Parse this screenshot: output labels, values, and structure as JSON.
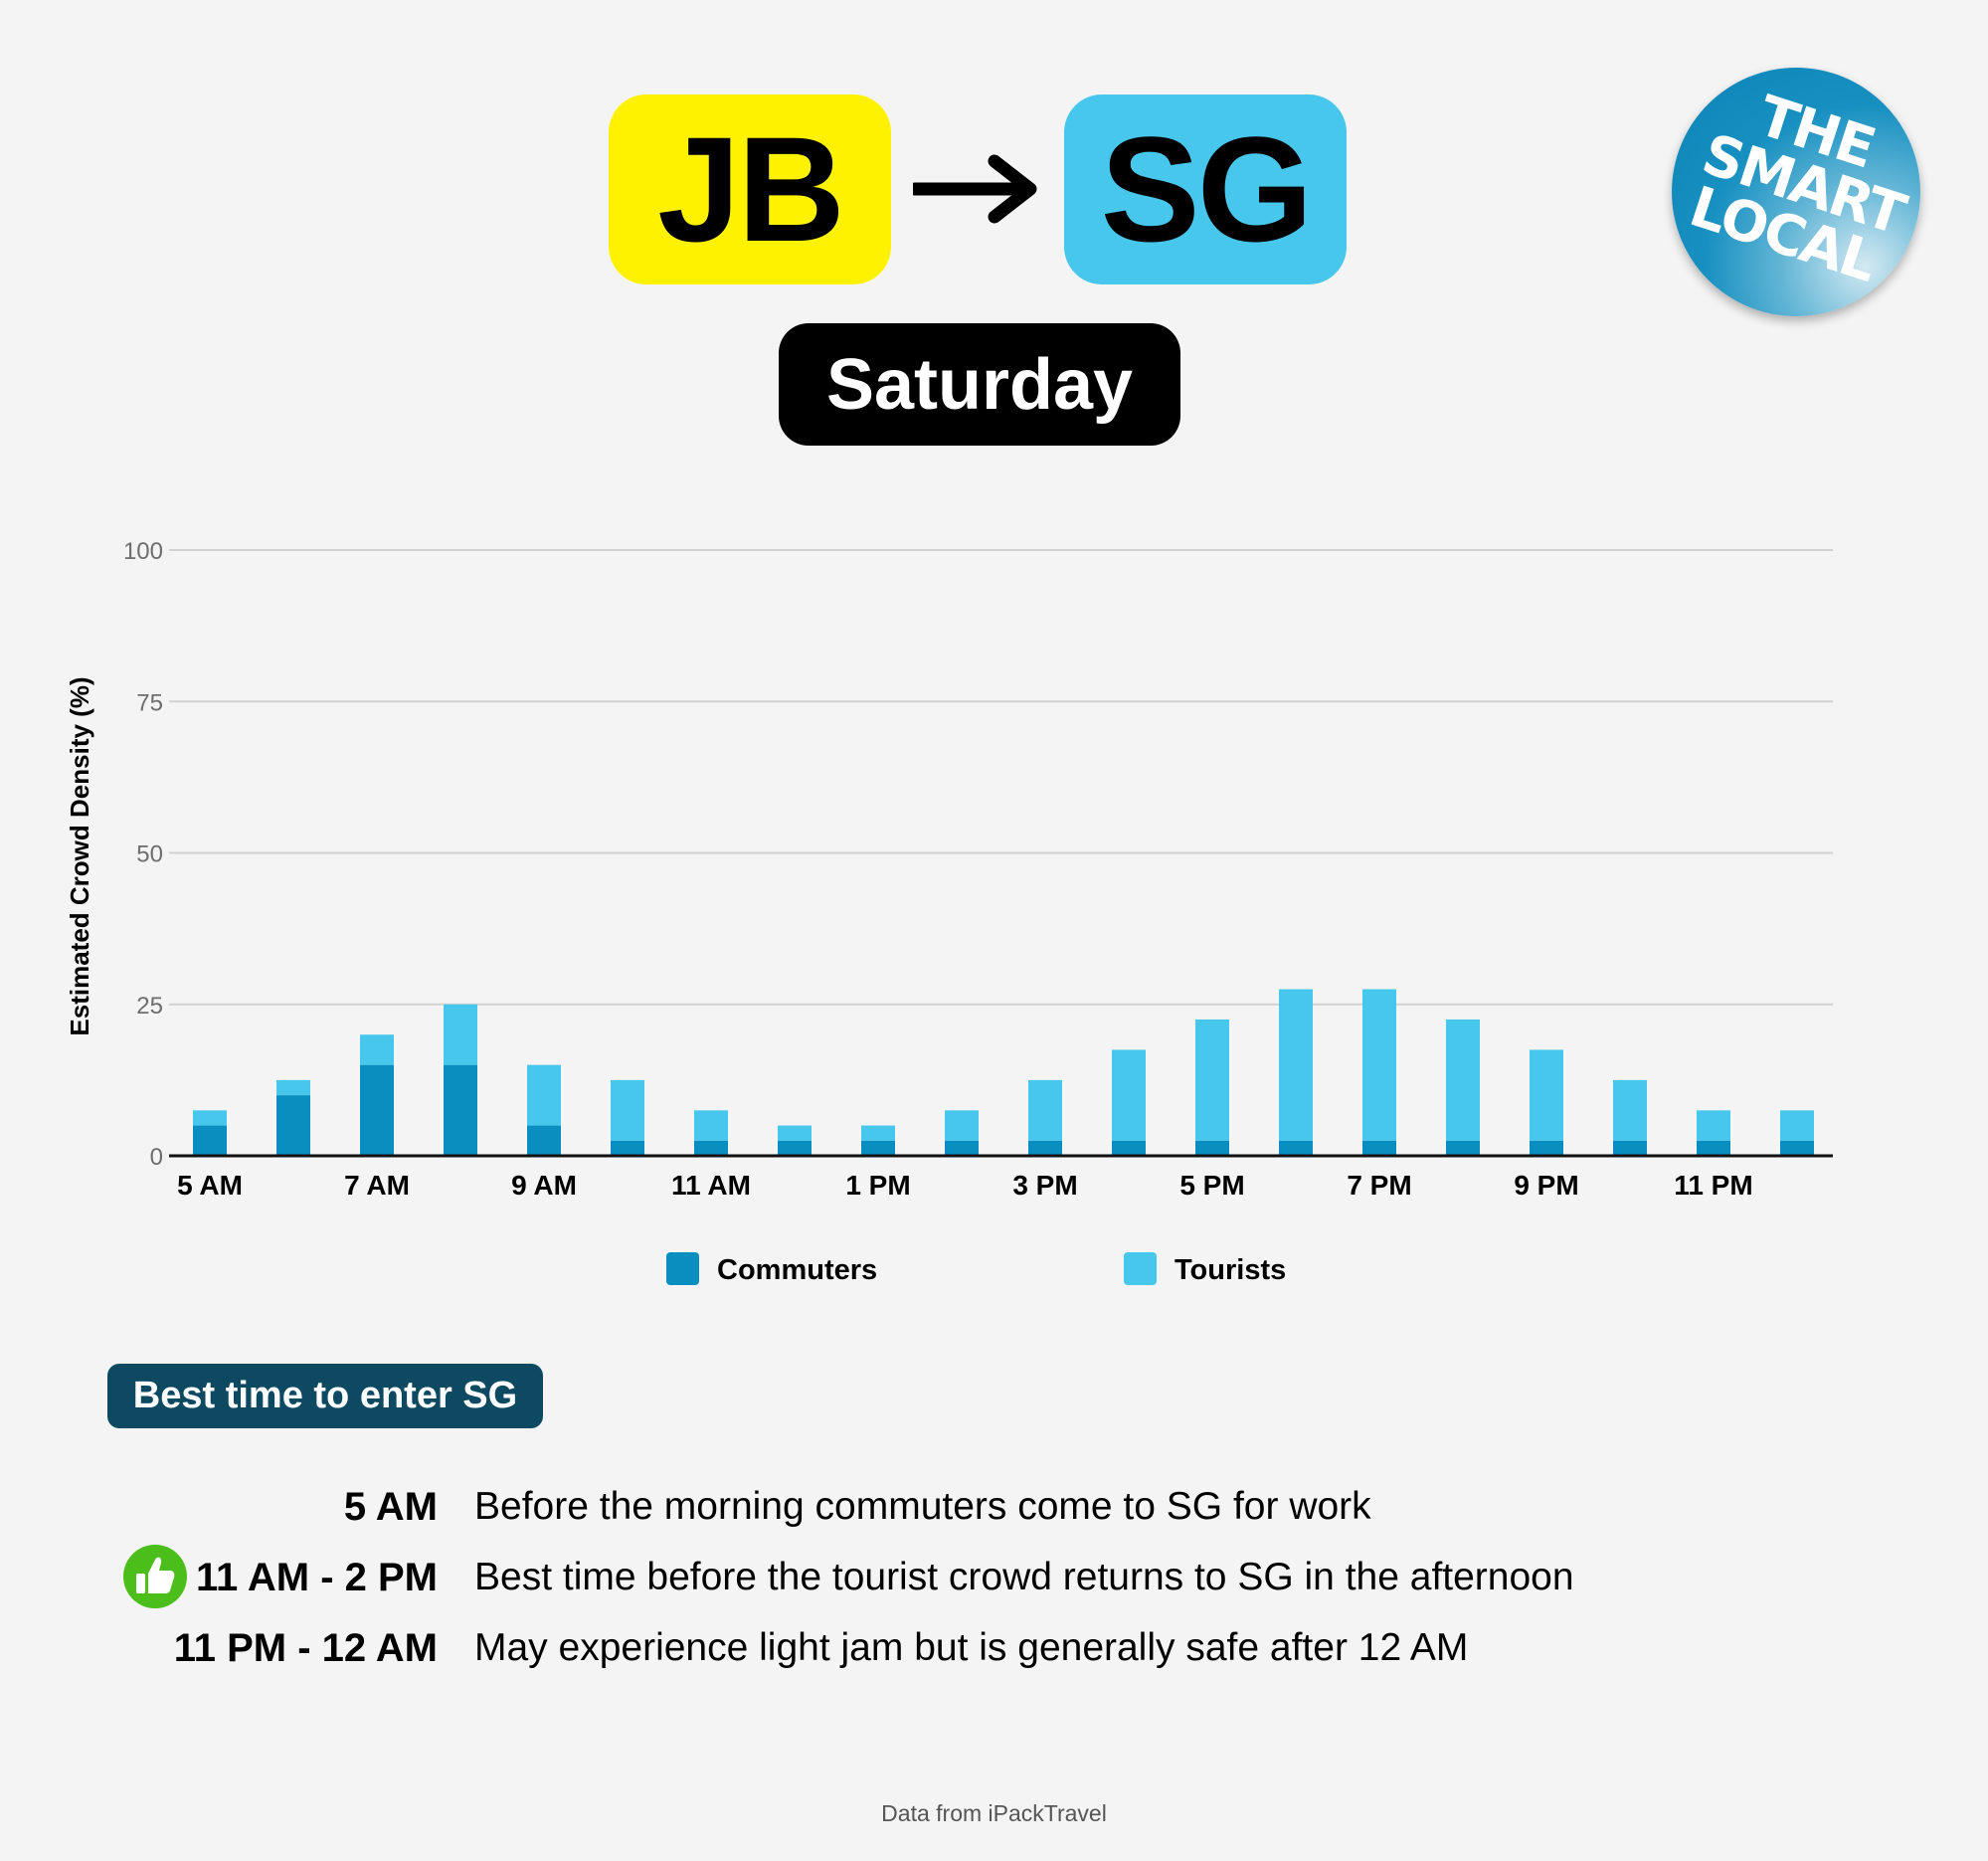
{
  "route": {
    "origin": "JB",
    "destination": "SG",
    "day": "Saturday"
  },
  "logo": {
    "lines": [
      "THE",
      "SMART",
      "LOCAL"
    ]
  },
  "colors": {
    "origin_badge": "#fff200",
    "destination_badge": "#48c7ec",
    "commuters": "#0a8ec0",
    "tourists": "#48c7ec",
    "best_header": "#0d4a62",
    "thumbs_up": "#4cbe1c",
    "background": "#f4f4f4"
  },
  "chart_data": {
    "type": "bar",
    "stacked": true,
    "ylabel": "Estimated Crowd Density (%)",
    "ylim": [
      0,
      100
    ],
    "yticks": [
      0,
      25,
      50,
      75,
      100
    ],
    "grid": true,
    "legend_position": "bottom",
    "categories": [
      "5 AM",
      "6 AM",
      "7 AM",
      "8 AM",
      "9 AM",
      "10 AM",
      "11 AM",
      "12 PM",
      "1 PM",
      "2 PM",
      "3 PM",
      "4 PM",
      "5 PM",
      "6 PM",
      "7 PM",
      "8 PM",
      "9 PM",
      "10 PM",
      "11 PM",
      "12 AM"
    ],
    "xtick_labels": [
      "5 AM",
      "7 AM",
      "9 AM",
      "11 AM",
      "1 PM",
      "3 PM",
      "5 PM",
      "7 PM",
      "9 PM",
      "11 PM"
    ],
    "series": [
      {
        "name": "Commuters",
        "values": [
          5,
          10,
          15,
          15,
          5,
          2.5,
          2.5,
          2.5,
          2.5,
          2.5,
          2.5,
          2.5,
          2.5,
          2.5,
          2.5,
          2.5,
          2.5,
          2.5,
          2.5,
          2.5
        ]
      },
      {
        "name": "Tourists",
        "values": [
          2.5,
          2.5,
          5,
          10,
          10,
          10,
          5,
          2.5,
          2.5,
          5,
          10,
          15,
          20,
          25,
          25,
          20,
          15,
          10,
          5,
          5
        ]
      }
    ]
  },
  "best_time": {
    "header": "Best time to enter SG",
    "items": [
      {
        "time": "5 AM",
        "description": "Before the morning commuters come to SG for work",
        "recommended": false
      },
      {
        "time": "11 AM - 2 PM",
        "description": "Best time before the tourist crowd returns to SG in the afternoon",
        "recommended": true,
        "icon": "thumbs-up-icon"
      },
      {
        "time": "11 PM - 12 AM",
        "description": "May experience light jam but is generally safe after 12 AM",
        "recommended": false
      }
    ]
  },
  "source": "Data from iPackTravel"
}
